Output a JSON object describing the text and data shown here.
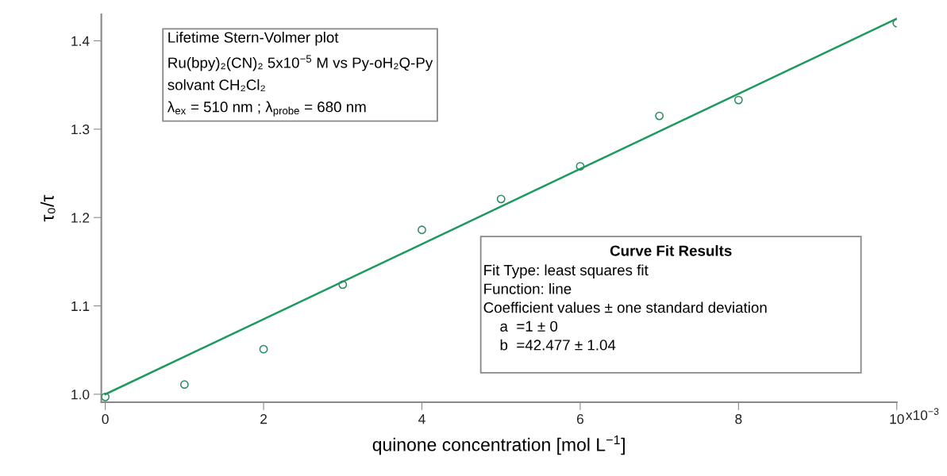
{
  "chart_data": {
    "type": "scatter",
    "xlabel": "quinone concentration [mol L$^{−1}$]",
    "ylabel": "τ₀/τ",
    "x": [
      0,
      1,
      2,
      3,
      4,
      5,
      6,
      7,
      8,
      10
    ],
    "series": [
      {
        "color": "#2e8b63",
        "marker": "circle",
        "values": [
          0.997,
          1.011,
          1.051,
          1.124,
          1.186,
          1.221,
          1.258,
          1.315,
          1.333,
          1.42
        ]
      },
      {
        "type": "line",
        "color": "#1f9a5e",
        "x": [
          0,
          10
        ],
        "values": [
          1,
          1.425
        ]
      }
    ],
    "xlim": [
      -0.05,
      10
    ],
    "ylim": [
      0.991,
      1.43
    ],
    "xticks": [
      0,
      2,
      4,
      6,
      8,
      10
    ],
    "yticks": [
      {
        "value": 1.0,
        "label": "1.0"
      },
      {
        "value": 1.1,
        "label": "1.1"
      },
      {
        "value": 1.2,
        "label": "1.2"
      },
      {
        "value": 1.3,
        "label": "1.3"
      },
      {
        "value": 1.4,
        "label": "1.4"
      }
    ],
    "annotations": [
      "x10$^{−3}$",
      "Lifetime Stern-Volmer plot\nRu(bpy)₂(CN)₂ 5x10$^{−5}$ M vs Py-oH₂Q-Py\nsolvant CH₂Cl₂\nλ$_{ex}$ = 510 nm ; λ$_{probe}$ = 680 nm",
      "Curve Fit Results",
      "Fit Type: least squares fit\nFunction: line\nCoefficient values ± one standard deviation\n    a  =1 ± 0\n    b  =42.477 ± 1.04"
    ]
  }
}
